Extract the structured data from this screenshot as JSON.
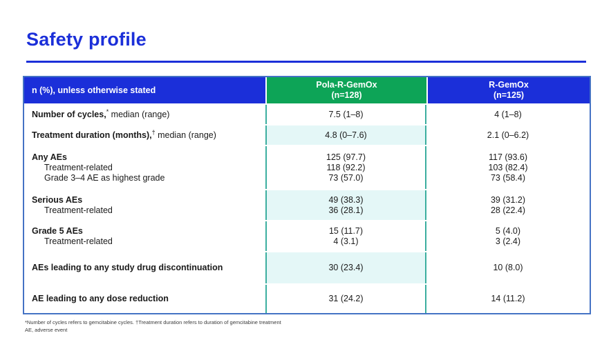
{
  "page": {
    "title": "Safety profile"
  },
  "colors": {
    "header_blue": "#1B2FD9",
    "header_green": "#0DA457",
    "separator_teal": "#3BAE9F",
    "band_cyan": "#E4F7F7",
    "border_blue": "#4472C4"
  },
  "table": {
    "header": {
      "label_col": "n (%), unless otherwise stated",
      "col1_name": "Pola-R-GemOx",
      "col1_n": "(n=128)",
      "col2_name": "R-GemOx",
      "col2_n": "(n=125)"
    },
    "rows": [
      {
        "label_bold": "Number of cycles,",
        "label_sup": "*",
        "label_rest": " median (range)",
        "sub": [],
        "col1": [
          "7.5 (1–8)"
        ],
        "col2": [
          "4 (1–8)"
        ],
        "banded": false
      },
      {
        "label_bold": "Treatment duration (months),",
        "label_sup": "†",
        "label_rest": " median (range)",
        "sub": [],
        "col1": [
          "4.8 (0–7.6)"
        ],
        "col2": [
          "2.1 (0–6.2)"
        ],
        "banded": true
      },
      {
        "label_bold": "Any AEs",
        "sub": [
          "Treatment-related",
          "Grade 3–4 AE as highest grade"
        ],
        "col1": [
          "125 (97.7)",
          "118 (92.2)",
          "73 (57.0)"
        ],
        "col2": [
          "117 (93.6)",
          "103 (82.4)",
          "73 (58.4)"
        ],
        "banded": false
      },
      {
        "label_bold": "Serious AEs",
        "sub": [
          "Treatment-related"
        ],
        "col1": [
          "49 (38.3)",
          "36 (28.1)"
        ],
        "col2": [
          "39 (31.2)",
          "28 (22.4)"
        ],
        "banded": true
      },
      {
        "label_bold": "Grade 5 AEs",
        "sub": [
          "Treatment-related"
        ],
        "col1": [
          "15 (11.7)",
          "4 (3.1)"
        ],
        "col2": [
          "5 (4.0)",
          "3 (2.4)"
        ],
        "banded": false
      },
      {
        "label_bold": "AEs leading to any study drug discontinuation",
        "sub": [],
        "col1": [
          "30 (23.4)"
        ],
        "col2": [
          "10 (8.0)"
        ],
        "banded": true
      },
      {
        "label_bold": "AE leading to any dose reduction",
        "sub": [],
        "col1": [
          "31 (24.2)"
        ],
        "col2": [
          "14 (11.2)"
        ],
        "banded": false
      }
    ]
  },
  "footnotes": [
    "*Number of cycles refers to gemcitabine cycles. †Treatment duration refers to duration of gemcitabine treatment",
    "AE, adverse event"
  ]
}
